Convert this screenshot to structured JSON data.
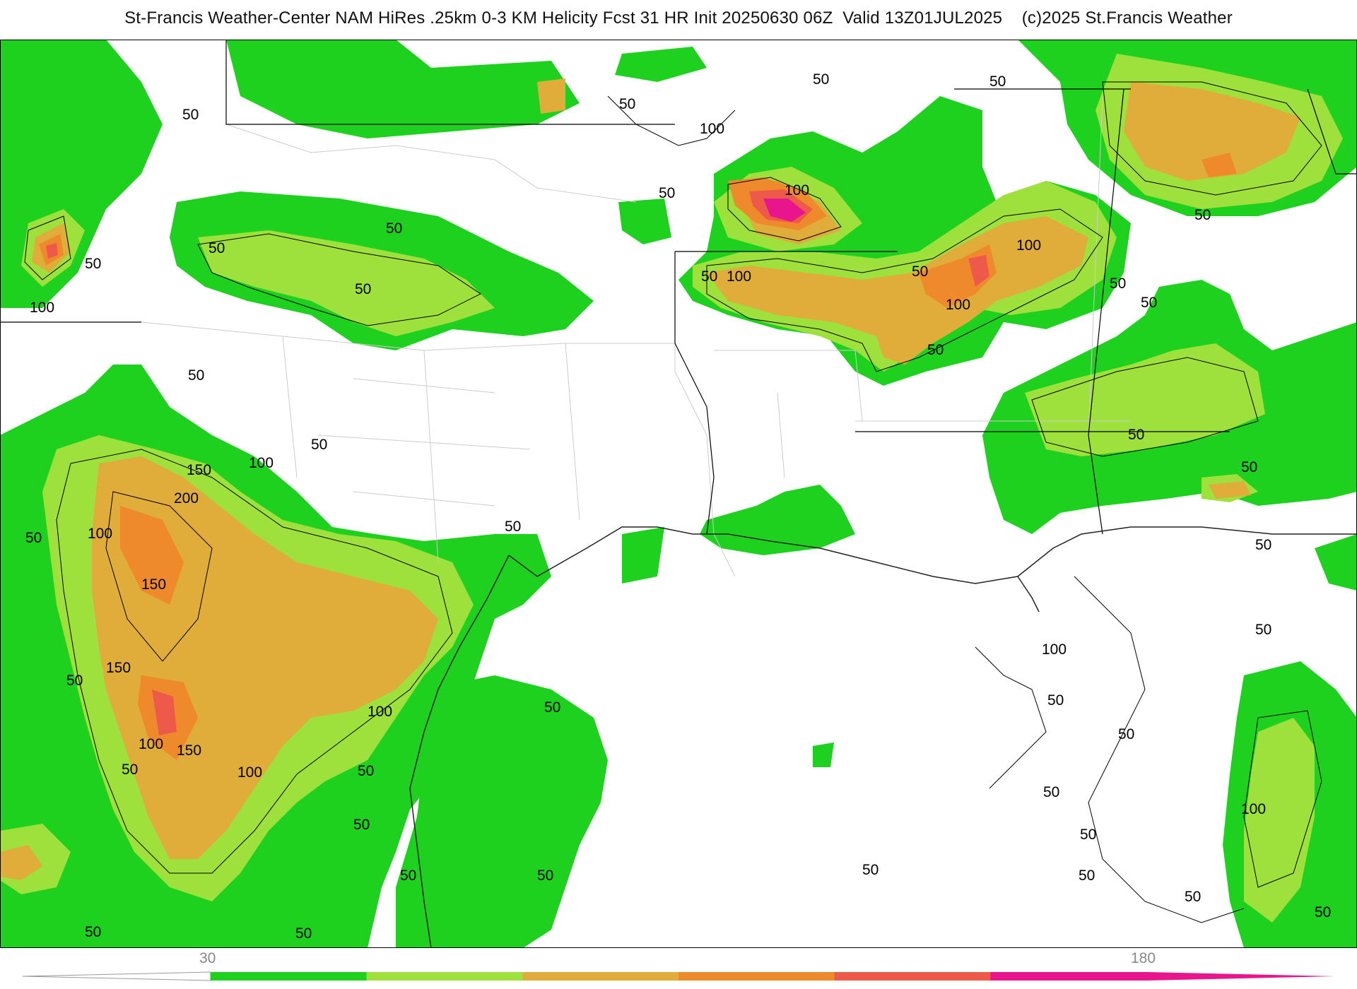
{
  "header": {
    "title": "St-Francis Weather-Center NAM HiRes .25km 0-3 KM Helicity Fcst 31 HR Init 20250630 06Z  Valid 13Z01JUL2025    (c)2025 St.Francis Weather"
  },
  "map": {
    "product": "0-3 KM Helicity",
    "colors": {
      "level_30": "#1fd11f",
      "level_60": "#9ee03c",
      "level_90": "#e0ac3a",
      "level_120": "#ef8a2c",
      "level_150": "#ee5a4a",
      "level_180": "#e8158c",
      "contour": "#000000",
      "borders": "#cccccc",
      "state_lines": "#000000"
    },
    "contour_labels": [
      "50",
      "50",
      "50",
      "100",
      "50",
      "50",
      "100",
      "50",
      "50",
      "50",
      "100",
      "50",
      "100",
      "50",
      "50",
      "100",
      "50",
      "50",
      "50",
      "150",
      "200",
      "100",
      "100",
      "50",
      "50",
      "150",
      "150",
      "100",
      "50",
      "150",
      "100",
      "50",
      "100",
      "50",
      "50",
      "50",
      "50",
      "50",
      "100",
      "50",
      "50",
      "100",
      "50",
      "50",
      "100",
      "50",
      "50",
      "50",
      "50",
      "50",
      "50",
      "50",
      "50",
      "50",
      "50",
      "50",
      "50",
      "50"
    ]
  },
  "colorbar": {
    "tick_labels": [
      "30",
      "180"
    ],
    "segments": [
      "#1fd11f",
      "#9ee03c",
      "#e0ac3a",
      "#ef8a2c",
      "#ee5a4a",
      "#e8158c"
    ]
  }
}
